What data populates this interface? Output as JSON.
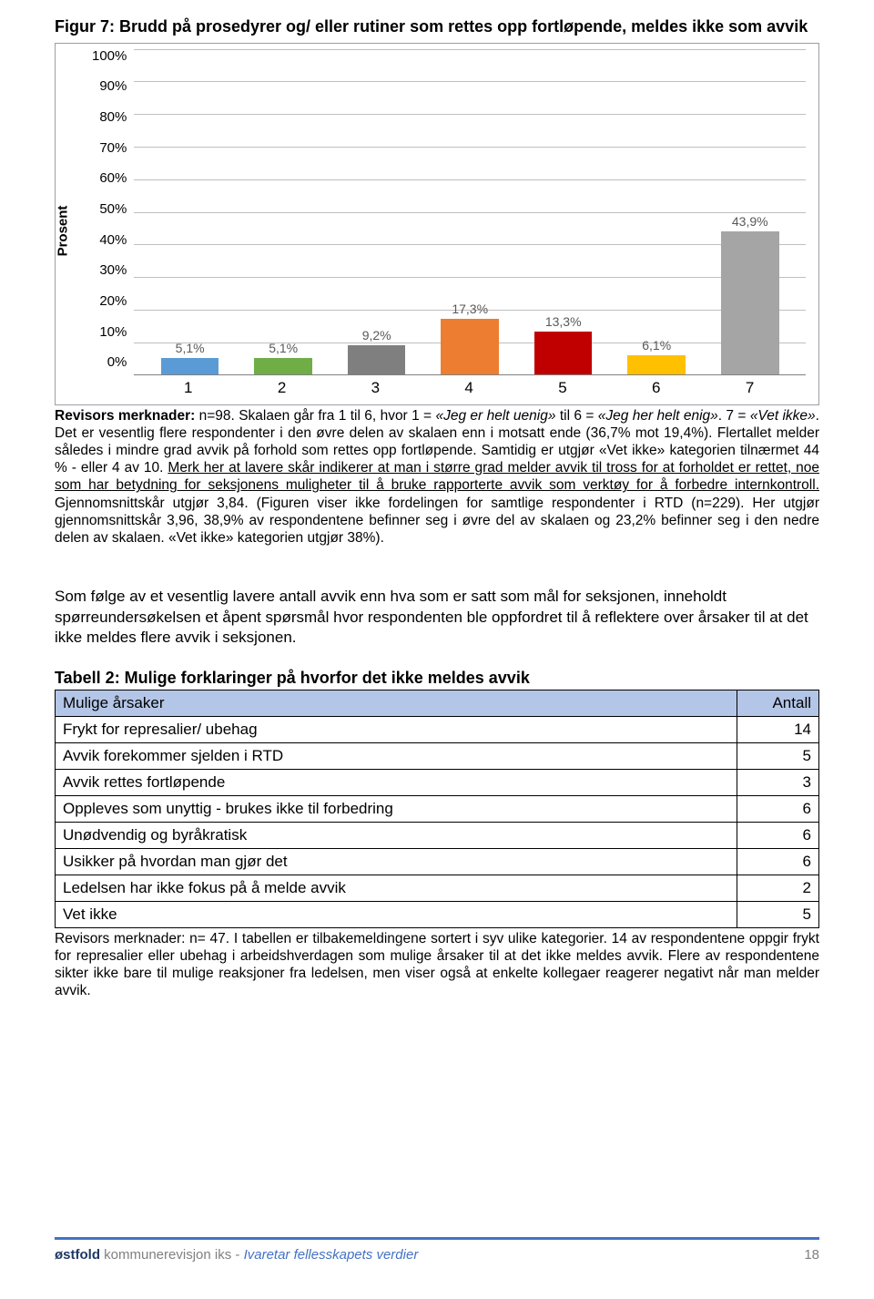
{
  "figure": {
    "title": "Figur 7: Brudd på prosedyrer og/ eller rutiner som rettes opp fortløpende, meldes ikke som avvik",
    "y_label": "Prosent",
    "y_ticks": [
      "100%",
      "90%",
      "80%",
      "70%",
      "60%",
      "50%",
      "40%",
      "30%",
      "20%",
      "10%",
      "0%"
    ],
    "bars": [
      {
        "label": "5,1%",
        "value": 5.1,
        "color": "#5b9bd5",
        "x": "1"
      },
      {
        "label": "5,1%",
        "value": 5.1,
        "color": "#70ad47",
        "x": "2"
      },
      {
        "label": "9,2%",
        "value": 9.2,
        "color": "#7f7f7f",
        "x": "3"
      },
      {
        "label": "17,3%",
        "value": 17.3,
        "color": "#ed7d31",
        "x": "4"
      },
      {
        "label": "13,3%",
        "value": 13.3,
        "color": "#c00000",
        "x": "5"
      },
      {
        "label": "6,1%",
        "value": 6.1,
        "color": "#ffc000",
        "x": "6"
      },
      {
        "label": "43,9%",
        "value": 43.9,
        "color": "#a5a5a5",
        "x": "7"
      }
    ],
    "ylim_max": 100,
    "grid_color": "#bfbfbf",
    "border_color": "#9aa0a6",
    "background": "#ffffff",
    "label_color": "#595959"
  },
  "note": {
    "lead": "Revisors merknader:",
    "body_html": " n=98. Skalaen går fra 1 til 6, hvor 1 = <i>«Jeg er helt uenig»</i> til 6 = <i>«Jeg her helt enig»</i>. 7 = <i>«Vet ikke»</i>. Det er vesentlig flere respondenter i den øvre delen av skalaen enn i motsatt ende (36,7% mot 19,4%). Flertallet melder således i mindre grad avvik på forhold som rettes opp fortløpende. Samtidig er utgjør «Vet ikke» kategorien tilnærmet 44 % - eller 4 av 10. <u>Merk her at lavere skår indikerer at man i større grad melder avvik til tross for at forholdet er rettet, noe som har betydning for seksjonens muligheter til å bruke rapporterte avvik som verktøy for å forbedre internkontroll.</u> Gjennomsnittskår utgjør 3,84. (Figuren viser ikke fordelingen for samtlige respondenter i RTD (n=229). Her utgjør gjennomsnittskår 3,96, 38,9% av respondentene befinner seg i øvre del av skalaen og 23,2% befinner seg i den nedre delen av skalaen. «Vet ikke» kategorien utgjør 38%)."
  },
  "mid_para": "Som følge av et vesentlig lavere antall avvik enn hva som er satt som mål for seksjonen, inneholdt spørreundersøkelsen et åpent spørsmål hvor respondenten ble oppfordret til å reflektere over årsaker til at det ikke meldes flere avvik i seksjonen.",
  "table": {
    "title": "Tabell 2: Mulige forklaringer på hvorfor det ikke meldes avvik",
    "head_reason": "Mulige årsaker",
    "head_count": "Antall",
    "header_bg": "#b4c6e7",
    "border_color": "#000000",
    "rows": [
      {
        "reason": "Frykt for represalier/ ubehag",
        "count": "14"
      },
      {
        "reason": "Avvik forekommer sjelden i RTD",
        "count": "5"
      },
      {
        "reason": "Avvik rettes fortløpende",
        "count": "3"
      },
      {
        "reason": "Oppleves som unyttig - brukes ikke til forbedring",
        "count": "6"
      },
      {
        "reason": "Unødvendig og byråkratisk",
        "count": "6"
      },
      {
        "reason": "Usikker på hvordan man gjør det",
        "count": "6"
      },
      {
        "reason": "Ledelsen har ikke fokus på å melde avvik",
        "count": "2"
      },
      {
        "reason": "Vet ikke",
        "count": "5"
      }
    ]
  },
  "table_note": {
    "lead": "Revisors merknader:",
    "body": " n= 47. I tabellen er tilbakemeldingene sortert i syv ulike kategorier. 14 av respondentene oppgir frykt for represalier eller ubehag i arbeidshverdagen som mulige årsaker til at det ikke meldes avvik. Flere av respondentene sikter ikke bare til mulige reaksjoner fra ledelsen, men viser også at enkelte kollegaer reagerer negativt når man melder avvik."
  },
  "footer": {
    "org1": "østfold",
    "org2": " kommunerevisjon iks",
    "sep": " - ",
    "tagline": "Ivaretar fellesskapets verdier",
    "page": "18",
    "rule_color": "#4472c4"
  }
}
